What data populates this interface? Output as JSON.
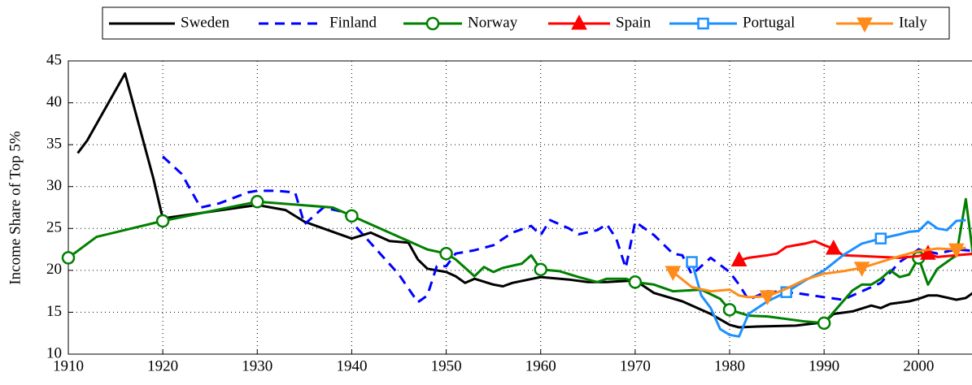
{
  "chart_data": {
    "type": "line",
    "y_label": "Income Share of Top 5%",
    "xlim": [
      1910,
      2006
    ],
    "ylim": [
      10,
      45
    ],
    "xticks": [
      1910,
      1920,
      1930,
      1940,
      1950,
      1960,
      1970,
      1980,
      1990,
      2000
    ],
    "yticks": [
      10,
      15,
      20,
      25,
      30,
      35,
      40,
      45
    ],
    "grid": true,
    "legend": "top",
    "series": [
      {
        "name": "Sweden",
        "color": "#000000",
        "x": [
          1911,
          1912,
          1916,
          1919,
          1920,
          1930,
          1933,
          1935,
          1940,
          1942,
          1944,
          1946,
          1947,
          1948,
          1950,
          1951,
          1952,
          1953,
          1955,
          1956,
          1957,
          1960,
          1963,
          1965,
          1967,
          1970,
          1972,
          1975,
          1978,
          1980,
          1981,
          1983,
          1987,
          1990,
          1991,
          1993,
          1995,
          1996,
          1997,
          1999,
          2000,
          2001,
          2002,
          2004,
          2005,
          2006
        ],
        "values": [
          34,
          35.5,
          43.5,
          31,
          26.2,
          27.8,
          27.2,
          25.8,
          23.8,
          24.5,
          23.5,
          23.3,
          21.3,
          20.2,
          19.8,
          19.3,
          18.5,
          19,
          18.3,
          18.1,
          18.5,
          19.2,
          18.9,
          18.6,
          18.6,
          18.8,
          17.3,
          16.3,
          14.8,
          13.5,
          13.2,
          13.3,
          13.4,
          13.8,
          14.8,
          15.1,
          15.8,
          15.5,
          16,
          16.3,
          16.6,
          17,
          17,
          16.5,
          16.7,
          17.5
        ]
      },
      {
        "name": "Finland",
        "color": "#0000ff",
        "linestyle": "dashed",
        "x": [
          1920,
          1922,
          1924,
          1926,
          1929,
          1930,
          1932,
          1934,
          1935,
          1937,
          1939,
          1941,
          1943,
          1945,
          1947,
          1948,
          1949,
          1950,
          1951,
          1953,
          1955,
          1957,
          1959,
          1960,
          1961,
          1963,
          1964,
          1966,
          1967,
          1968,
          1969,
          1970,
          1972,
          1974,
          1975,
          1976,
          1978,
          1980,
          1981,
          1982,
          1984,
          1987,
          1990,
          1992,
          1994,
          1996,
          1998,
          2000,
          2002,
          2004,
          2006
        ],
        "values": [
          33.6,
          31.5,
          27.5,
          28,
          29.3,
          29.5,
          29.5,
          29.3,
          25.5,
          27.5,
          27,
          24.5,
          22,
          19.5,
          16.2,
          17,
          20.5,
          20.5,
          22,
          22.4,
          23,
          24.5,
          25.3,
          24.2,
          26,
          25,
          24.3,
          24.8,
          25.5,
          23.8,
          20.3,
          25.8,
          24.2,
          22,
          21.8,
          19.5,
          21.5,
          19.8,
          18.3,
          16.5,
          17.5,
          17.3,
          16.8,
          16.5,
          17.5,
          18.5,
          21,
          22.5,
          22,
          22.5,
          22.3
        ]
      },
      {
        "name": "Norway",
        "color": "#008000",
        "marker": "circle",
        "x": [
          1910,
          1913,
          1920,
          1930,
          1938,
          1940,
          1945,
          1948,
          1950,
          1951,
          1952,
          1953,
          1954,
          1955,
          1956,
          1958,
          1959,
          1960,
          1962,
          1964,
          1966,
          1967,
          1969,
          1970,
          1972,
          1974,
          1977,
          1979,
          1980,
          1982,
          1984,
          1986,
          1988,
          1990,
          1991,
          1992,
          1993,
          1994,
          1995,
          1996,
          1997,
          1998,
          1999,
          2000,
          2001,
          2002,
          2003,
          2004,
          2005,
          2006
        ],
        "values": [
          21.5,
          24,
          25.9,
          28.2,
          27.5,
          26.5,
          24,
          22.5,
          22,
          21.3,
          20.3,
          19.3,
          20.4,
          19.8,
          20.3,
          20.8,
          21.8,
          20.1,
          19.9,
          19.2,
          18.6,
          19,
          19,
          18.6,
          18.3,
          17.5,
          17.7,
          16.6,
          15.3,
          14.6,
          14.5,
          14.2,
          13.9,
          13.7,
          15,
          16.3,
          17.6,
          18.3,
          18.3,
          19,
          20,
          19.2,
          19.5,
          21.5,
          18.3,
          20.2,
          21,
          21.8,
          28.5,
          19.8
        ]
      },
      {
        "name": "Spain",
        "color": "#ff0000",
        "marker": "triangle-up",
        "x": [
          1981,
          1982,
          1984,
          1985,
          1986,
          1987,
          1988,
          1989,
          1990,
          1991,
          1992,
          1994,
          1996,
          1998,
          2000,
          2001,
          2002,
          2004,
          2006
        ],
        "values": [
          21.2,
          21.5,
          21.8,
          22,
          22.8,
          23,
          23.2,
          23.5,
          23,
          22.6,
          21.8,
          21.7,
          21.6,
          21.5,
          21.7,
          22,
          21.6,
          21.8,
          22
        ]
      },
      {
        "name": "Portugal",
        "color": "#1e90ff",
        "marker": "square",
        "x": [
          1976,
          1977,
          1978,
          1979,
          1980,
          1981,
          1982,
          1984,
          1986,
          1988,
          1990,
          1992,
          1994,
          1996,
          1998,
          1999,
          2000,
          2001,
          2002,
          2003,
          2004,
          2005
        ],
        "values": [
          21,
          17,
          15.5,
          13,
          12.3,
          12.1,
          14.8,
          16.3,
          17.4,
          18.8,
          20,
          21.8,
          23.2,
          23.8,
          24.3,
          24.6,
          24.7,
          25.8,
          25,
          24.8,
          25.9,
          26
        ]
      },
      {
        "name": "Italy",
        "color": "#ff8c1a",
        "marker": "triangle-down",
        "x": [
          1974,
          1976,
          1978,
          1980,
          1981,
          1982,
          1984,
          1986,
          1988,
          1990,
          1992,
          1994,
          1996,
          1998,
          2000,
          2002,
          2004,
          2005
        ],
        "values": [
          19.8,
          18,
          17.5,
          17.7,
          17,
          16.8,
          16.9,
          17.8,
          18.9,
          19.6,
          19.9,
          20.3,
          21,
          21.7,
          22.3,
          22.6,
          22.5,
          22.7
        ]
      }
    ]
  }
}
